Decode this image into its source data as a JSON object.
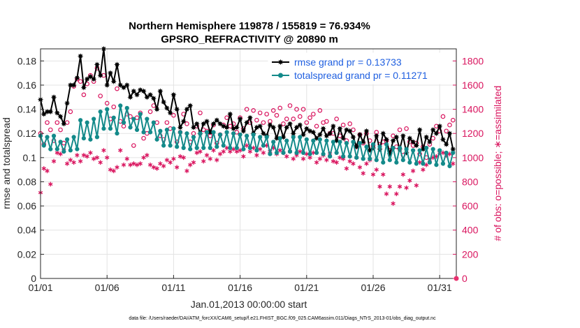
{
  "chart_data": {
    "type": "line",
    "title": "Northern Hemisphere 119878 / 155819 = 76.934%",
    "subtitle": "GPSRO_REFRACTIVITY @ 20890 m",
    "xlabel": "Jan.01,2013 00:00:00 start",
    "ylabel": "rmse and totalspread",
    "y2label": "# of obs: o=possible; ∗=assimilated",
    "footnote": "data file: /Users/raeder/DAI/ATM_forcXX/CAM6_setup/f.e21.FHIST_BGC.f09_025.CAM6assim.011/Diags_NTrS_2013-01/obs_diag_output.nc",
    "xlim": [
      0,
      31.25
    ],
    "ylim": [
      0,
      0.19
    ],
    "y2lim": [
      0,
      1900
    ],
    "x_tick_values": [
      0,
      5,
      10,
      15,
      20,
      25,
      30
    ],
    "x_tick_labels": [
      "01/01",
      "01/06",
      "01/11",
      "01/16",
      "01/21",
      "01/26",
      "01/31"
    ],
    "y_tick_labels": [
      "0",
      "0.02",
      "0.04",
      "0.06",
      "0.08",
      "0.1",
      "0.12",
      "0.14",
      "0.16",
      "0.18"
    ],
    "y2_tick_labels": [
      "0",
      "200",
      "400",
      "600",
      "800",
      "1000",
      "1200",
      "1400",
      "1600",
      "1800"
    ],
    "grid": true,
    "legend_position": "top-right",
    "colors": {
      "rmse": "#000000",
      "spread": "#138a8a",
      "obs": "#d9145e",
      "legend_text": "#1f5fe0"
    },
    "series": [
      {
        "name": "rmse grand pr = 0.13733",
        "x_step": 0.25,
        "values": [
          0.148,
          0.136,
          0.138,
          0.138,
          0.15,
          0.137,
          0.134,
          0.128,
          0.145,
          0.16,
          0.16,
          0.166,
          0.184,
          0.158,
          0.165,
          0.167,
          0.165,
          0.177,
          0.168,
          0.19,
          0.16,
          0.17,
          0.163,
          0.177,
          0.16,
          0.158,
          0.16,
          0.15,
          0.155,
          0.152,
          0.156,
          0.155,
          0.15,
          0.152,
          0.149,
          0.14,
          0.155,
          0.146,
          0.141,
          0.137,
          0.152,
          0.14,
          0.125,
          0.13,
          0.14,
          0.143,
          0.125,
          0.128,
          0.12,
          0.128,
          0.13,
          0.121,
          0.128,
          0.131,
          0.128,
          0.126,
          0.125,
          0.136,
          0.124,
          0.125,
          0.132,
          0.122,
          0.129,
          0.133,
          0.12,
          0.125,
          0.126,
          0.12,
          0.118,
          0.127,
          0.125,
          0.116,
          0.126,
          0.117,
          0.125,
          0.128,
          0.12,
          0.125,
          0.127,
          0.119,
          0.124,
          0.122,
          0.121,
          0.116,
          0.119,
          0.124,
          0.118,
          0.12,
          0.126,
          0.114,
          0.124,
          0.116,
          0.123,
          0.122,
          0.117,
          0.109,
          0.119,
          0.113,
          0.122,
          0.106,
          0.108,
          0.118,
          0.107,
          0.12,
          0.115,
          0.103,
          0.114,
          0.117,
          0.107,
          0.118,
          0.104,
          0.116,
          0.113,
          0.11,
          0.123,
          0.107,
          0.117,
          0.113,
          0.123,
          0.12,
          0.126,
          0.115,
          0.111,
          0.12,
          0.107
        ]
      },
      {
        "name": "totalspread grand pr = 0.11271",
        "x_step": 0.25,
        "values": [
          0.118,
          0.11,
          0.117,
          0.107,
          0.118,
          0.107,
          0.113,
          0.105,
          0.115,
          0.106,
          0.117,
          0.107,
          0.131,
          0.116,
          0.129,
          0.115,
          0.132,
          0.117,
          0.138,
          0.124,
          0.14,
          0.124,
          0.133,
          0.12,
          0.143,
          0.129,
          0.141,
          0.125,
          0.132,
          0.123,
          0.136,
          0.121,
          0.132,
          0.121,
          0.129,
          0.115,
          0.122,
          0.11,
          0.123,
          0.11,
          0.124,
          0.109,
          0.121,
          0.108,
          0.12,
          0.107,
          0.117,
          0.108,
          0.12,
          0.108,
          0.121,
          0.108,
          0.121,
          0.109,
          0.119,
          0.11,
          0.121,
          0.108,
          0.12,
          0.108,
          0.119,
          0.107,
          0.118,
          0.108,
          0.119,
          0.106,
          0.117,
          0.11,
          0.117,
          0.103,
          0.113,
          0.104,
          0.116,
          0.104,
          0.114,
          0.105,
          0.117,
          0.104,
          0.117,
          0.104,
          0.115,
          0.103,
          0.114,
          0.104,
          0.115,
          0.103,
          0.114,
          0.101,
          0.113,
          0.104,
          0.113,
          0.101,
          0.112,
          0.101,
          0.113,
          0.1,
          0.112,
          0.099,
          0.109,
          0.099,
          0.111,
          0.098,
          0.109,
          0.096,
          0.111,
          0.098,
          0.108,
          0.096,
          0.108,
          0.098,
          0.107,
          0.096,
          0.106,
          0.095,
          0.106,
          0.095,
          0.108,
          0.096,
          0.107,
          0.094,
          0.106,
          0.095,
          0.104,
          0.093,
          0.104
        ]
      }
    ],
    "obs_possible": {
      "name": "possible",
      "x_step": 0.25,
      "values": [
        1200,
        1110,
        1290,
        1230,
        1140,
        1290,
        1230,
        1120,
        1290,
        1380,
        1590,
        1650,
        1630,
        1520,
        1610,
        1680,
        1630,
        1740,
        1510,
        1680,
        1450,
        1320,
        1420,
        1570,
        1300,
        1260,
        1360,
        1340,
        1100,
        1330,
        1370,
        1160,
        1200,
        1380,
        1430,
        1290,
        1180,
        1150,
        1290,
        1240,
        1350,
        1130,
        1210,
        1360,
        1280,
        1130,
        1200,
        1260,
        1370,
        1230,
        1220,
        1180,
        1270,
        1120,
        1190,
        1270,
        1330,
        1260,
        1280,
        1210,
        1330,
        1240,
        1400,
        1290,
        1390,
        1310,
        1370,
        1290,
        1360,
        1300,
        1390,
        1350,
        1410,
        1280,
        1320,
        1430,
        1320,
        1400,
        1340,
        1400,
        1290,
        1330,
        1360,
        1260,
        1390,
        1290,
        1300,
        1200,
        1200,
        1320,
        1180,
        1270,
        1140,
        1280,
        1230,
        1090,
        1190,
        1120,
        1200,
        1140,
        1100,
        1210,
        1110,
        1130,
        1140,
        1060,
        1180,
        1090,
        1230,
        1020,
        1240,
        1130,
        1100,
        1120,
        1030,
        1090,
        1000,
        1110,
        1160,
        1260,
        1220,
        1340,
        1220,
        1270,
        1310
      ]
    },
    "obs_assimilated": {
      "name": "assimilated",
      "x_step": 0.25,
      "values": [
        710,
        910,
        890,
        780,
        970,
        1040,
        1030,
        1060,
        950,
        980,
        960,
        1020,
        970,
        1020,
        1010,
        1040,
        990,
        1000,
        960,
        1060,
        1000,
        900,
        890,
        920,
        1060,
        940,
        990,
        940,
        950,
        940,
        950,
        1000,
        1020,
        940,
        920,
        910,
        950,
        930,
        980,
        960,
        990,
        920,
        1010,
        1000,
        890,
        940,
        960,
        1040,
        1050,
        970,
        1020,
        990,
        1060,
        980,
        1030,
        1050,
        1080,
        1050,
        1070,
        1050,
        1060,
        1010,
        1100,
        1050,
        1080,
        1020,
        1070,
        1040,
        1100,
        1050,
        1080,
        1030,
        1060,
        1040,
        1010,
        1050,
        990,
        1020,
        1050,
        990,
        1030,
        1000,
        1040,
        960,
        990,
        1020,
        980,
        1030,
        970,
        960,
        1000,
        990,
        910,
        970,
        950,
        1000,
        920,
        870,
        950,
        980,
        860,
        900,
        760,
        860,
        700,
        760,
        620,
        700,
        760,
        860,
        750,
        810,
        890,
        770,
        960,
        900,
        940,
        980,
        1000,
        1010,
        1040,
        1040,
        1020,
        1030,
        950
      ]
    }
  }
}
